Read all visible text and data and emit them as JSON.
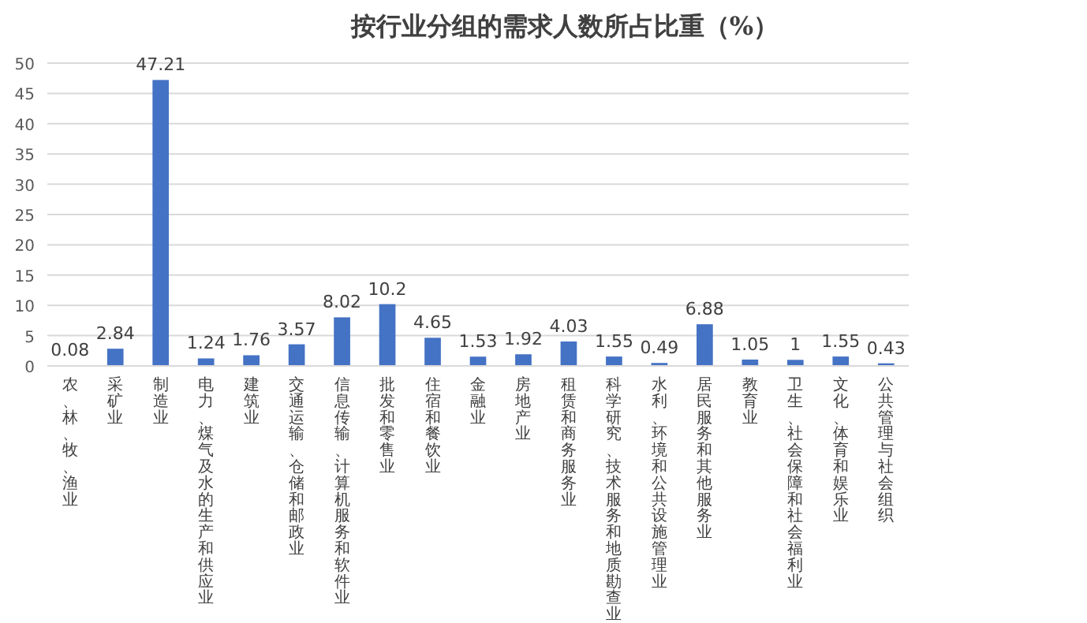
{
  "chart_data": {
    "type": "bar",
    "title": "按行业分组的需求人数所占比重（%）",
    "categories": [
      "农、林、牧、渔业",
      "采矿业",
      "制造业",
      "电力、煤气及水的生产和供应业",
      "建筑业",
      "交通运输、仓储和邮政业",
      "信息传输、计算机服务和软件业",
      "批发和零售业",
      "住宿和餐饮业",
      "金融业",
      "房地产业",
      "租赁和商务服务业",
      "科学研究、技术服务和地质勘查业",
      "水利、环境和公共设施管理业",
      "居民服务和其他服务业",
      "教育业",
      "卫生、社会保障和社会福利业",
      "文化、体育和娱乐业",
      "公共管理与社会组织"
    ],
    "values": [
      0.08,
      2.84,
      47.21,
      1.24,
      1.76,
      3.57,
      8.02,
      10.2,
      4.65,
      1.53,
      1.92,
      4.03,
      1.55,
      0.49,
      6.88,
      1.05,
      1,
      1.55,
      0.43
    ],
    "color": "#4472c4",
    "ylim": [
      0,
      50
    ],
    "yticks": [
      0,
      5,
      10,
      15,
      20,
      25,
      30,
      35,
      40,
      45,
      50
    ],
    "grid": "y",
    "data_labels": true
  }
}
